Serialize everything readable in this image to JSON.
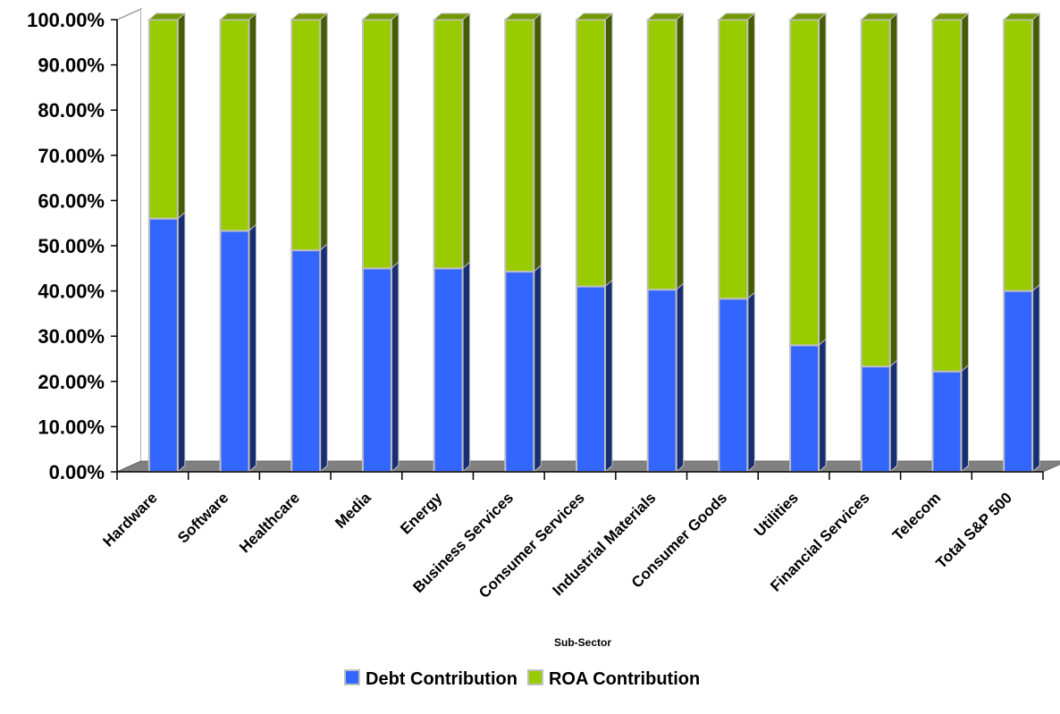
{
  "chart_data": {
    "type": "bar",
    "stacked": true,
    "percent_stacked": true,
    "three_d": true,
    "categories": [
      "Hardware",
      "Software",
      "Healthcare",
      "Media",
      "Energy",
      "Business Services",
      "Consumer Services",
      "Industrial Materials",
      "Consumer Goods",
      "Utilities",
      "Financial Services",
      "Telecom",
      "Total S&P 500"
    ],
    "series": [
      {
        "name": "Debt Contribution",
        "color": "#3366ff",
        "values": [
          56,
          53.3,
          49,
          45,
          45,
          44.3,
          41,
          40.3,
          38.3,
          28,
          23.3,
          22.2,
          40
        ]
      },
      {
        "name": "ROA Contribution",
        "color": "#99cc00",
        "values": [
          44,
          46.7,
          51,
          55,
          55,
          55.7,
          59,
          59.7,
          61.7,
          72,
          76.7,
          77.8,
          60
        ]
      }
    ],
    "y_ticks": [
      "0.00%",
      "10.00%",
      "20.00%",
      "30.00%",
      "40.00%",
      "50.00%",
      "60.00%",
      "70.00%",
      "80.00%",
      "90.00%",
      "100.00%"
    ],
    "ylim": [
      0,
      100
    ],
    "xlabel": "Sub-Sector",
    "ylabel": "",
    "grid": false,
    "legend": "bottom"
  }
}
